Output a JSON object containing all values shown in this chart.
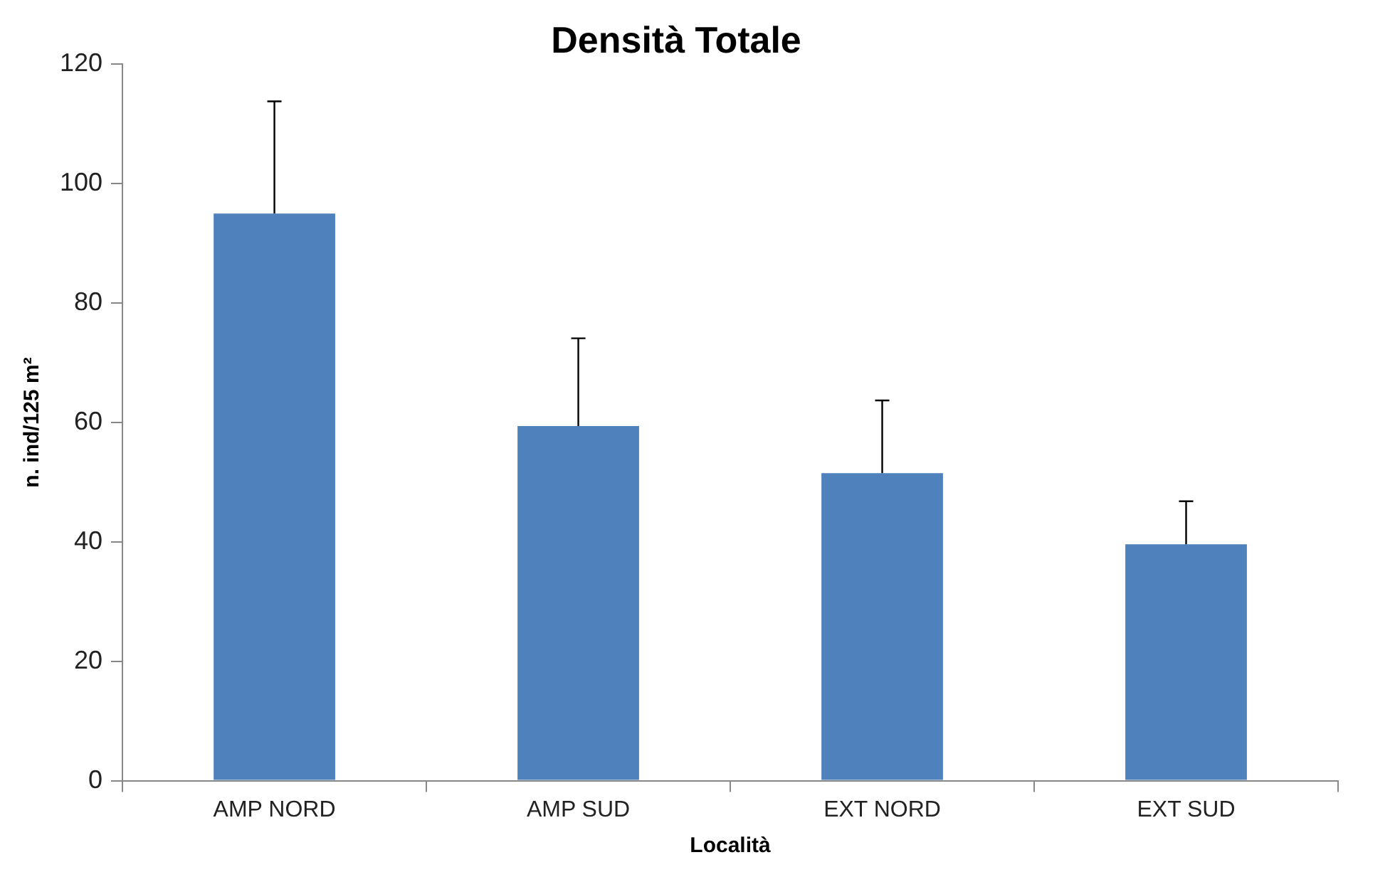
{
  "chart_data": {
    "type": "bar",
    "title": "Densità Totale",
    "xlabel": "Località",
    "ylabel": "n. ind/125 m²",
    "categories": [
      "AMP NORD",
      "AMP SUD",
      "EXT NORD",
      "EXT SUD"
    ],
    "values": [
      95,
      59.4,
      51.5,
      39.6
    ],
    "errors": [
      [
        95,
        113.8
      ],
      [
        59.4,
        74.1
      ],
      [
        51.5,
        63.7
      ],
      [
        39.6,
        46.8
      ]
    ],
    "color": "#4f81bd",
    "ylim": [
      0,
      120
    ],
    "yticks": [
      0,
      20,
      40,
      60,
      80,
      100,
      120
    ]
  }
}
